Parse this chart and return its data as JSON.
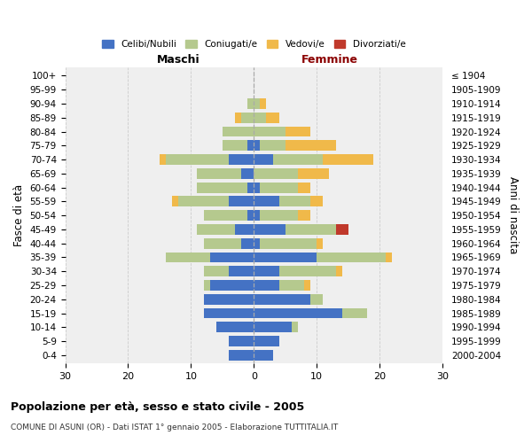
{
  "age_groups": [
    "0-4",
    "5-9",
    "10-14",
    "15-19",
    "20-24",
    "25-29",
    "30-34",
    "35-39",
    "40-44",
    "45-49",
    "50-54",
    "55-59",
    "60-64",
    "65-69",
    "70-74",
    "75-79",
    "80-84",
    "85-89",
    "90-94",
    "95-99",
    "100+"
  ],
  "birth_years": [
    "2000-2004",
    "1995-1999",
    "1990-1994",
    "1985-1989",
    "1980-1984",
    "1975-1979",
    "1970-1974",
    "1965-1969",
    "1960-1964",
    "1955-1959",
    "1950-1954",
    "1945-1949",
    "1940-1944",
    "1935-1939",
    "1930-1934",
    "1925-1929",
    "1920-1924",
    "1915-1919",
    "1910-1914",
    "1905-1909",
    "≤ 1904"
  ],
  "male": {
    "celibi": [
      4,
      4,
      6,
      8,
      8,
      7,
      4,
      7,
      2,
      3,
      1,
      4,
      1,
      2,
      4,
      1,
      0,
      0,
      0,
      0,
      0
    ],
    "coniugati": [
      0,
      0,
      0,
      0,
      0,
      1,
      4,
      7,
      6,
      6,
      7,
      8,
      8,
      7,
      10,
      4,
      5,
      2,
      1,
      0,
      0
    ],
    "vedovi": [
      0,
      0,
      0,
      0,
      0,
      0,
      0,
      0,
      0,
      0,
      0,
      1,
      0,
      0,
      1,
      0,
      0,
      1,
      0,
      0,
      0
    ],
    "divorziati": [
      0,
      0,
      0,
      0,
      0,
      0,
      0,
      0,
      0,
      0,
      0,
      0,
      0,
      0,
      0,
      0,
      0,
      0,
      0,
      0,
      0
    ]
  },
  "female": {
    "nubili": [
      3,
      4,
      6,
      14,
      9,
      4,
      4,
      10,
      1,
      5,
      1,
      4,
      1,
      0,
      3,
      1,
      0,
      0,
      0,
      0,
      0
    ],
    "coniugate": [
      0,
      0,
      1,
      4,
      2,
      4,
      9,
      11,
      9,
      8,
      6,
      5,
      6,
      7,
      8,
      4,
      5,
      2,
      1,
      0,
      0
    ],
    "vedove": [
      0,
      0,
      0,
      0,
      0,
      1,
      1,
      1,
      1,
      0,
      2,
      2,
      2,
      5,
      8,
      8,
      4,
      2,
      1,
      0,
      0
    ],
    "divorziate": [
      0,
      0,
      0,
      0,
      0,
      0,
      0,
      0,
      0,
      2,
      0,
      0,
      0,
      0,
      0,
      0,
      0,
      0,
      0,
      0,
      0
    ]
  },
  "colors": {
    "celibi_nubili": "#4472c4",
    "coniugati": "#b5c98e",
    "vedovi": "#f0b94a",
    "divorziati": "#c0392b"
  },
  "xlim": 30,
  "title": "Popolazione per età, sesso e stato civile - 2005",
  "subtitle": "COMUNE DI ASUNI (OR) - Dati ISTAT 1° gennaio 2005 - Elaborazione TUTTITALIA.IT",
  "ylabel_left": "Fasce di età",
  "ylabel_right": "Anni di nascita",
  "label_maschi": "Maschi",
  "label_femmine": "Femmine",
  "femmine_color": "#8b0000",
  "legend_labels": [
    "Celibi/Nubili",
    "Coniugati/e",
    "Vedovi/e",
    "Divorziati/e"
  ],
  "bg_color": "#ffffff",
  "plot_bg_color": "#efefef"
}
